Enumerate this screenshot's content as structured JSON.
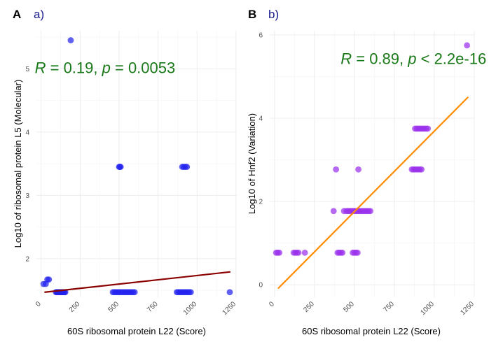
{
  "chart_data": [
    {
      "type": "scatter",
      "panel_letter": "A",
      "panel_label": "a)",
      "xlabel": "60S ribosomal protein L22 (Score)",
      "ylabel": "Log10 of ribosomal protein L5 (Molecular)",
      "xlim": [
        -30,
        1255
      ],
      "ylim": [
        1.39,
        5.6
      ],
      "x_ticks": [
        0,
        250,
        500,
        750,
        1000,
        1250
      ],
      "x_tick_labels": [
        "0",
        "250",
        "500",
        "750",
        "1000",
        "1250"
      ],
      "y_ticks": [
        2,
        3,
        4,
        5
      ],
      "y_tick_labels": [
        "2",
        "3",
        "4",
        "5"
      ],
      "point_color": "#2323ee",
      "line_color": "#8b0000",
      "regression": {
        "x": [
          25,
          1210
        ],
        "y": [
          1.47,
          1.79
        ]
      },
      "annotation": {
        "R": "0.19",
        "p_op": "=",
        "p": "0.0053",
        "x": 410,
        "y": 4.93
      },
      "points": {
        "x": [
          190,
          15,
          30,
          40,
          50,
          95,
          100,
          105,
          110,
          115,
          120,
          125,
          130,
          135,
          140,
          145,
          150,
          155,
          500,
          505,
          510,
          460,
          470,
          480,
          490,
          500,
          510,
          520,
          530,
          540,
          550,
          560,
          570,
          580,
          590,
          600,
          905,
          915,
          925,
          935,
          870,
          880,
          890,
          900,
          910,
          920,
          930,
          940,
          950,
          960,
          1210
        ],
        "y": [
          5.45,
          1.6,
          1.6,
          1.67,
          1.67,
          1.47,
          1.47,
          1.47,
          1.47,
          1.47,
          1.47,
          1.47,
          1.47,
          1.47,
          1.47,
          1.47,
          1.47,
          1.47,
          3.45,
          3.45,
          3.45,
          1.47,
          1.47,
          1.47,
          1.47,
          1.47,
          1.47,
          1.47,
          1.47,
          1.47,
          1.47,
          1.47,
          1.47,
          1.47,
          1.47,
          1.47,
          3.45,
          3.45,
          3.45,
          3.45,
          1.47,
          1.47,
          1.47,
          1.47,
          1.47,
          1.47,
          1.47,
          1.47,
          1.47,
          1.47,
          1.47
        ]
      }
    },
    {
      "type": "scatter",
      "panel_letter": "B",
      "panel_label": "b)",
      "xlabel": "60S ribosomal protein L22 (Score)",
      "ylabel": "Log10 of Hnf2 (Variation)",
      "xlim": [
        -30,
        1255
      ],
      "ylim": [
        -0.3,
        6.1
      ],
      "x_ticks": [
        0,
        250,
        500,
        750,
        1000,
        1250
      ],
      "x_tick_labels": [
        "0",
        "250",
        "500",
        "750",
        "1000",
        "1250"
      ],
      "y_ticks": [
        0,
        2,
        4,
        6
      ],
      "y_tick_labels": [
        "0",
        "2",
        "4",
        "6"
      ],
      "point_color": "#9a30ec",
      "line_color": "#ff8c00",
      "regression": {
        "x": [
          25,
          1210
        ],
        "y": [
          -0.08,
          4.5
        ]
      },
      "annotation": {
        "R": "0.89",
        "p_op": "<",
        "p": "2.2e-16",
        "x": 870,
        "y": 5.3
      },
      "points": {
        "x": [
          10,
          20,
          30,
          120,
          130,
          140,
          150,
          190,
          370,
          385,
          395,
          405,
          415,
          425,
          490,
          500,
          510,
          520,
          525,
          435,
          450,
          460,
          470,
          480,
          490,
          500,
          510,
          520,
          530,
          540,
          550,
          560,
          570,
          580,
          590,
          600,
          860,
          870,
          880,
          890,
          900,
          910,
          920,
          880,
          890,
          900,
          910,
          920,
          930,
          940,
          950,
          960,
          1205
        ],
        "y": [
          0.77,
          0.77,
          0.77,
          0.77,
          0.77,
          0.77,
          0.77,
          0.77,
          1.77,
          2.77,
          0.77,
          0.77,
          0.77,
          0.77,
          0.77,
          0.77,
          0.77,
          0.77,
          2.77,
          1.77,
          1.77,
          1.77,
          1.77,
          1.77,
          1.77,
          1.77,
          1.77,
          1.77,
          1.77,
          1.77,
          1.77,
          1.77,
          1.77,
          1.77,
          1.77,
          1.77,
          2.77,
          2.77,
          2.77,
          2.77,
          2.77,
          2.77,
          2.77,
          3.75,
          3.75,
          3.75,
          3.75,
          3.75,
          3.75,
          3.75,
          3.75,
          3.75,
          5.75
        ]
      }
    }
  ]
}
